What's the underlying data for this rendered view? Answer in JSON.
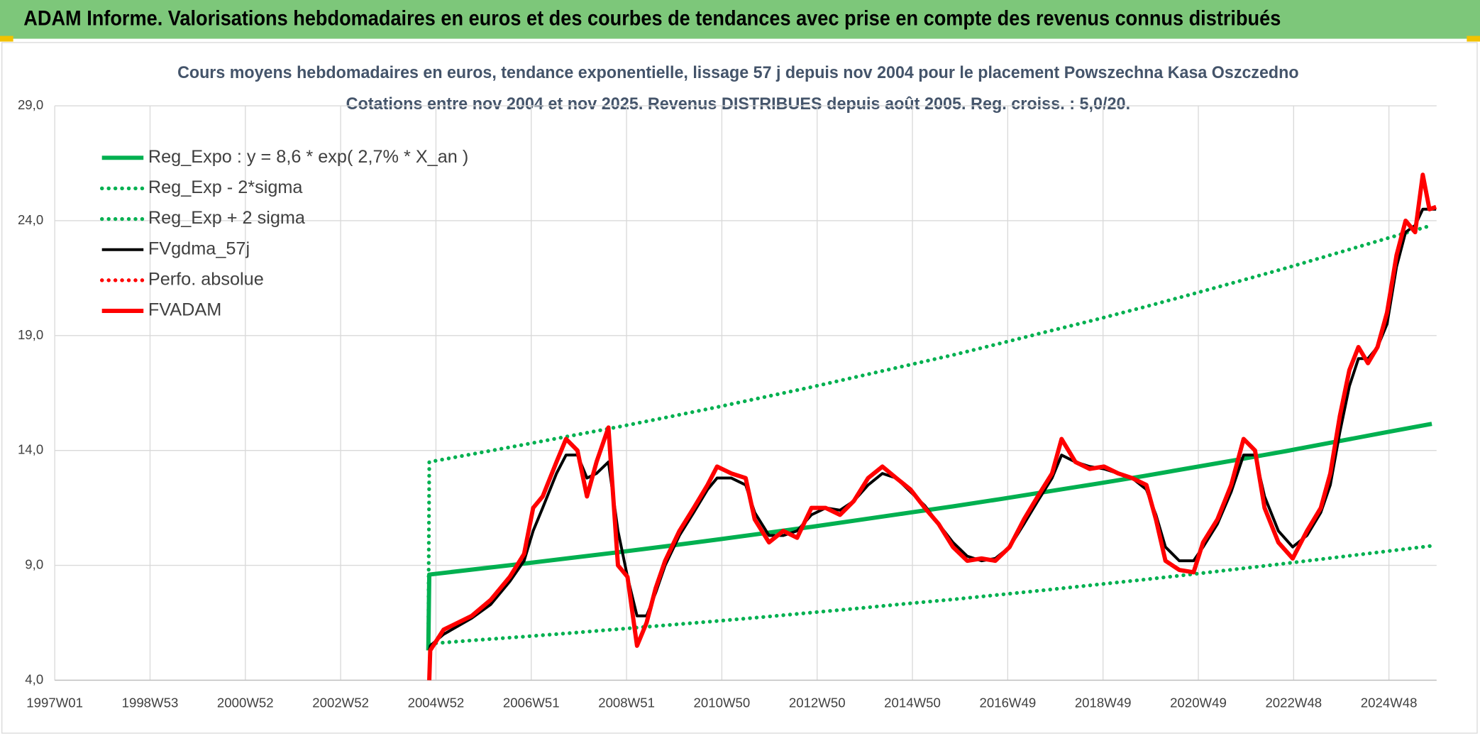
{
  "header": {
    "title": "ADAM Informe. Valorisations hebdomadaires en euros et des courbes de tendances avec prise en compte des revenus connus distribués"
  },
  "chart_data": {
    "type": "line",
    "title": "Cours moyens hebdomadaires en euros, tendance exponentielle, lissage 57 j depuis nov 2004 pour le placement Powszechna Kasa Oszczedno",
    "subtitle": "Cotations entre nov 2004 et nov 2025. Revenus DISTRIBUES depuis août 2005. Reg. croiss. : 5,0/20.",
    "xlim": [
      1997,
      2026
    ],
    "xticks": [
      {
        "value": 1997,
        "label": "1997W01"
      },
      {
        "value": 1999,
        "label": "1998W53"
      },
      {
        "value": 2001,
        "label": "2000W52"
      },
      {
        "value": 2003,
        "label": "2002W52"
      },
      {
        "value": 2005,
        "label": "2004W52"
      },
      {
        "value": 2007,
        "label": "2006W51"
      },
      {
        "value": 2009,
        "label": "2008W51"
      },
      {
        "value": 2011,
        "label": "2010W50"
      },
      {
        "value": 2013,
        "label": "2012W50"
      },
      {
        "value": 2015,
        "label": "2014W50"
      },
      {
        "value": 2017,
        "label": "2016W49"
      },
      {
        "value": 2019,
        "label": "2018W49"
      },
      {
        "value": 2021,
        "label": "2020W49"
      },
      {
        "value": 2023,
        "label": "2022W48"
      },
      {
        "value": 2025,
        "label": "2024W48"
      }
    ],
    "ylim": [
      4,
      29
    ],
    "yticks": [
      {
        "value": 4,
        "label": "4,0"
      },
      {
        "value": 9,
        "label": "9,0"
      },
      {
        "value": 14,
        "label": "14,0"
      },
      {
        "value": 19,
        "label": "19,0"
      },
      {
        "value": 24,
        "label": "24,0"
      },
      {
        "value": 29,
        "label": "29,0"
      }
    ],
    "grid": true,
    "legend": "top-left",
    "series": [
      {
        "name": "Reg_Expo : y = 8,6 * exp( 2,7% *  X_an )",
        "color": "#00b050",
        "style": "solid",
        "x": [
          2004.84,
          2004.86,
          2005.86,
          2006.86,
          2007.86,
          2008.86,
          2009.86,
          2010.86,
          2011.86,
          2012.86,
          2013.86,
          2014.86,
          2015.86,
          2016.86,
          2017.86,
          2018.86,
          2019.86,
          2020.86,
          2021.86,
          2022.86,
          2023.86,
          2024.86,
          2025.9
        ],
        "values": [
          5.3,
          8.6,
          8.84,
          9.08,
          9.33,
          9.58,
          9.84,
          10.11,
          10.39,
          10.67,
          10.97,
          11.27,
          11.57,
          11.89,
          12.22,
          12.55,
          12.89,
          13.25,
          13.61,
          13.98,
          14.37,
          14.76,
          15.16
        ]
      },
      {
        "name": "Reg_Exp - 2*sigma",
        "color": "#00b050",
        "style": "dotted",
        "x": [
          2004.86,
          2005.86,
          2006.86,
          2007.86,
          2008.86,
          2009.86,
          2010.86,
          2011.86,
          2012.86,
          2013.86,
          2014.86,
          2015.86,
          2016.86,
          2017.86,
          2018.86,
          2019.86,
          2020.86,
          2021.86,
          2022.86,
          2023.86,
          2024.86,
          2025.9
        ],
        "values": [
          5.59,
          5.75,
          5.9,
          6.06,
          6.23,
          6.4,
          6.57,
          6.75,
          6.94,
          7.13,
          7.33,
          7.52,
          7.73,
          7.94,
          8.16,
          8.38,
          8.61,
          8.85,
          9.09,
          9.34,
          9.59,
          9.85
        ]
      },
      {
        "name": "Reg_Exp + 2 sigma",
        "color": "#00b050",
        "style": "dotted",
        "x": [
          2004.84,
          2004.86,
          2005.86,
          2006.86,
          2007.86,
          2008.86,
          2009.86,
          2010.86,
          2011.86,
          2012.86,
          2013.86,
          2014.86,
          2015.86,
          2016.86,
          2017.86,
          2018.86,
          2019.86,
          2020.86,
          2021.86,
          2022.86,
          2023.86,
          2024.86,
          2025.9
        ],
        "values": [
          5.6,
          13.5,
          13.88,
          14.26,
          14.65,
          15.04,
          15.45,
          15.87,
          16.31,
          16.75,
          17.22,
          17.69,
          18.16,
          18.67,
          19.19,
          19.7,
          20.24,
          20.8,
          21.37,
          21.95,
          22.56,
          23.17,
          23.8
        ]
      },
      {
        "name": "FVgdma_57j",
        "color": "#000000",
        "style": "solid",
        "x": [
          2004.86,
          2004.88,
          2005.16,
          2005.75,
          2006.15,
          2006.55,
          2006.85,
          2007.04,
          2007.24,
          2007.53,
          2007.73,
          2007.97,
          2008.17,
          2008.37,
          2008.62,
          2008.82,
          2009.02,
          2009.22,
          2009.42,
          2009.61,
          2009.81,
          2010.11,
          2010.41,
          2010.7,
          2010.9,
          2011.2,
          2011.5,
          2011.69,
          2011.99,
          2012.29,
          2012.58,
          2012.88,
          2013.18,
          2013.48,
          2013.77,
          2014.07,
          2014.37,
          2014.66,
          2014.96,
          2015.26,
          2015.55,
          2015.85,
          2016.15,
          2016.45,
          2016.74,
          2017.04,
          2017.34,
          2017.63,
          2017.93,
          2018.13,
          2018.42,
          2018.72,
          2019.02,
          2019.32,
          2019.61,
          2019.91,
          2020.11,
          2020.31,
          2020.6,
          2020.9,
          2021.1,
          2021.4,
          2021.69,
          2021.95,
          2022.19,
          2022.39,
          2022.68,
          2022.98,
          2023.28,
          2023.57,
          2023.77,
          2023.97,
          2024.17,
          2024.36,
          2024.56,
          2024.76,
          2024.96,
          2025.16,
          2025.35,
          2025.55,
          2025.71,
          2025.85,
          2025.99
        ],
        "values": [
          5.3,
          5.5,
          6.0,
          6.7,
          7.3,
          8.3,
          9.2,
          10.5,
          11.5,
          13.0,
          13.8,
          13.8,
          12.8,
          13.0,
          13.5,
          10.5,
          8.5,
          6.8,
          6.8,
          7.8,
          9.0,
          10.3,
          11.3,
          12.3,
          12.8,
          12.8,
          12.5,
          11.3,
          10.3,
          10.3,
          10.5,
          11.2,
          11.5,
          11.4,
          11.8,
          12.5,
          13.0,
          12.8,
          12.2,
          11.6,
          10.8,
          10.0,
          9.4,
          9.2,
          9.3,
          9.8,
          10.8,
          11.8,
          12.8,
          13.8,
          13.5,
          13.3,
          13.2,
          13.0,
          12.8,
          12.3,
          11.2,
          9.8,
          9.2,
          9.2,
          9.8,
          10.8,
          12.2,
          13.8,
          13.8,
          12.0,
          10.5,
          9.8,
          10.3,
          11.3,
          12.5,
          14.8,
          16.8,
          18.0,
          18.0,
          18.5,
          19.5,
          22.0,
          23.5,
          23.8,
          24.5,
          24.5,
          24.5
        ]
      },
      {
        "name": "Perfo. absolue",
        "color": "#ff0000",
        "style": "dotted",
        "x": [],
        "values": []
      },
      {
        "name": "FVADAM",
        "color": "#ff0000",
        "style": "solid",
        "x": [
          2004.86,
          2004.88,
          2005.16,
          2005.75,
          2006.15,
          2006.55,
          2006.85,
          2007.04,
          2007.24,
          2007.53,
          2007.73,
          2007.97,
          2008.17,
          2008.37,
          2008.62,
          2008.82,
          2009.02,
          2009.22,
          2009.42,
          2009.61,
          2009.81,
          2010.11,
          2010.41,
          2010.7,
          2010.9,
          2011.2,
          2011.5,
          2011.69,
          2011.99,
          2012.29,
          2012.58,
          2012.88,
          2013.18,
          2013.48,
          2013.77,
          2014.07,
          2014.37,
          2014.66,
          2014.96,
          2015.26,
          2015.55,
          2015.85,
          2016.15,
          2016.45,
          2016.74,
          2017.04,
          2017.34,
          2017.63,
          2017.93,
          2018.13,
          2018.42,
          2018.72,
          2019.02,
          2019.32,
          2019.61,
          2019.91,
          2020.11,
          2020.31,
          2020.6,
          2020.9,
          2021.1,
          2021.4,
          2021.69,
          2021.95,
          2022.19,
          2022.39,
          2022.68,
          2022.98,
          2023.28,
          2023.57,
          2023.77,
          2023.97,
          2024.17,
          2024.36,
          2024.56,
          2024.76,
          2024.96,
          2025.16,
          2025.35,
          2025.55,
          2025.71,
          2025.85,
          2025.99
        ],
        "values": [
          4.0,
          5.3,
          6.2,
          6.8,
          7.5,
          8.5,
          9.5,
          11.5,
          12.0,
          13.5,
          14.5,
          14.0,
          12.0,
          13.5,
          15.0,
          9.0,
          8.5,
          5.5,
          6.5,
          8.0,
          9.2,
          10.5,
          11.5,
          12.5,
          13.3,
          13.0,
          12.8,
          11.0,
          10.0,
          10.5,
          10.2,
          11.5,
          11.5,
          11.2,
          11.8,
          12.8,
          13.3,
          12.8,
          12.3,
          11.5,
          10.8,
          9.8,
          9.2,
          9.3,
          9.2,
          9.8,
          11.0,
          12.0,
          13.0,
          14.5,
          13.5,
          13.2,
          13.3,
          13.0,
          12.8,
          12.5,
          11.0,
          9.2,
          8.8,
          8.7,
          10.0,
          11.0,
          12.5,
          14.5,
          14.0,
          11.5,
          10.0,
          9.3,
          10.5,
          11.5,
          13.0,
          15.5,
          17.5,
          18.5,
          17.8,
          18.5,
          20.0,
          22.5,
          24.0,
          23.5,
          26.0,
          24.5,
          24.6
        ]
      }
    ]
  }
}
